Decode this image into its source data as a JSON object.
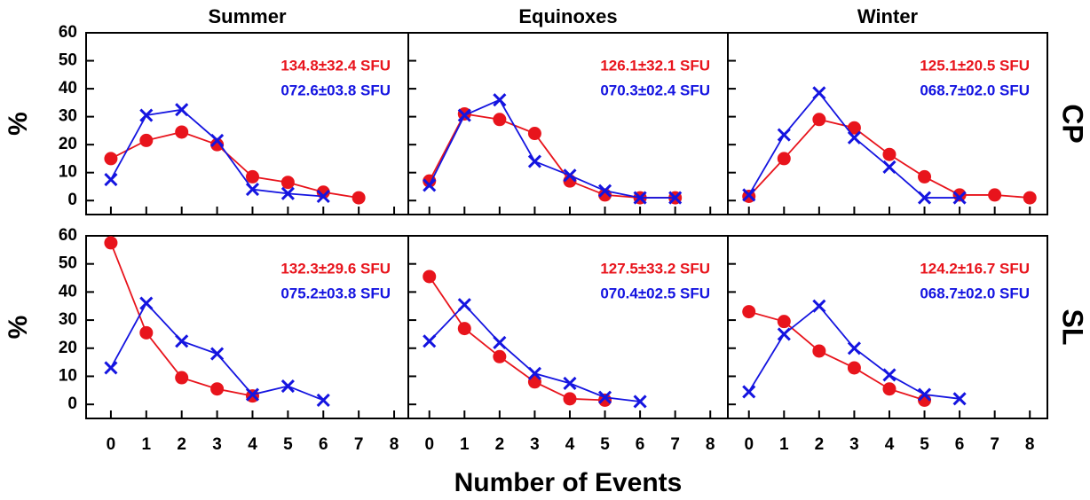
{
  "xlabel": "Number of Events",
  "chart_data": [
    {
      "type": "line",
      "title": "Summer",
      "ylabel": "%",
      "x": [
        0,
        1,
        2,
        3,
        4,
        5,
        6,
        7,
        8
      ],
      "xlim": [
        -0.7,
        8.4
      ],
      "ylim": [
        -5,
        60
      ],
      "xticks": [
        0,
        1,
        2,
        3,
        4,
        5,
        6,
        7,
        8
      ],
      "yticks": [
        0,
        10,
        20,
        30,
        40,
        50,
        60
      ],
      "xtick_labels": false,
      "ytick_labels": true,
      "series": [
        {
          "name": "134.8±32.4 SFU",
          "color": "#e8141c",
          "marker": "circle",
          "values": [
            15,
            21.5,
            24.5,
            20,
            8.5,
            6.5,
            3,
            1,
            null
          ]
        },
        {
          "name": "072.6±03.8 SFU",
          "color": "#1414e0",
          "marker": "x",
          "values": [
            7.5,
            30.5,
            32.5,
            21.5,
            4,
            2.5,
            1.5,
            null,
            null
          ]
        }
      ]
    },
    {
      "type": "line",
      "title": "Equinoxes",
      "x": [
        0,
        1,
        2,
        3,
        4,
        5,
        6,
        7,
        8
      ],
      "xlim": [
        -0.6,
        8.5
      ],
      "ylim": [
        -5,
        60
      ],
      "xticks": [
        0,
        1,
        2,
        3,
        4,
        5,
        6,
        7,
        8
      ],
      "yticks": [
        0,
        10,
        20,
        30,
        40,
        50,
        60
      ],
      "xtick_labels": false,
      "ytick_labels": false,
      "series": [
        {
          "name": "126.1±32.1 SFU",
          "color": "#e8141c",
          "marker": "circle",
          "values": [
            7,
            31,
            29,
            24,
            7,
            2,
            1,
            1,
            null
          ]
        },
        {
          "name": "070.3±02.4 SFU",
          "color": "#1414e0",
          "marker": "x",
          "values": [
            5.5,
            30.5,
            36,
            14,
            9,
            3.5,
            1,
            1,
            null
          ]
        }
      ]
    },
    {
      "type": "line",
      "title": "Winter",
      "row_label": "CP",
      "x": [
        0,
        1,
        2,
        3,
        4,
        5,
        6,
        7,
        8
      ],
      "xlim": [
        -0.6,
        8.5
      ],
      "ylim": [
        -5,
        60
      ],
      "xticks": [
        0,
        1,
        2,
        3,
        4,
        5,
        6,
        7,
        8
      ],
      "yticks": [
        0,
        10,
        20,
        30,
        40,
        50,
        60
      ],
      "xtick_labels": false,
      "ytick_labels": false,
      "series": [
        {
          "name": "125.1±20.5 SFU",
          "color": "#e8141c",
          "marker": "circle",
          "values": [
            1.5,
            15,
            29,
            26,
            16.5,
            8.5,
            2,
            2,
            1
          ]
        },
        {
          "name": "068.7±02.0 SFU",
          "color": "#1414e0",
          "marker": "x",
          "values": [
            2,
            23.5,
            38.5,
            22.5,
            12,
            1,
            1,
            null,
            null
          ]
        }
      ]
    },
    {
      "type": "line",
      "ylabel": "%",
      "x": [
        0,
        1,
        2,
        3,
        4,
        5,
        6,
        7,
        8
      ],
      "xlim": [
        -0.7,
        8.4
      ],
      "ylim": [
        -5,
        60
      ],
      "xticks": [
        0,
        1,
        2,
        3,
        4,
        5,
        6,
        7,
        8
      ],
      "yticks": [
        0,
        10,
        20,
        30,
        40,
        50,
        60
      ],
      "xtick_labels": true,
      "ytick_labels": true,
      "series": [
        {
          "name": "132.3±29.6 SFU",
          "color": "#e8141c",
          "marker": "circle",
          "values": [
            57.5,
            25.5,
            9.5,
            5.5,
            3,
            null,
            null,
            null,
            null
          ]
        },
        {
          "name": "075.2±03.8 SFU",
          "color": "#1414e0",
          "marker": "x",
          "values": [
            13,
            36,
            22.5,
            18,
            3.5,
            6.5,
            1.5,
            null,
            null
          ]
        }
      ]
    },
    {
      "type": "line",
      "x": [
        0,
        1,
        2,
        3,
        4,
        5,
        6,
        7,
        8
      ],
      "xlim": [
        -0.6,
        8.5
      ],
      "ylim": [
        -5,
        60
      ],
      "xticks": [
        0,
        1,
        2,
        3,
        4,
        5,
        6,
        7,
        8
      ],
      "yticks": [
        0,
        10,
        20,
        30,
        40,
        50,
        60
      ],
      "xtick_labels": true,
      "ytick_labels": false,
      "series": [
        {
          "name": "127.5±33.2 SFU",
          "color": "#e8141c",
          "marker": "circle",
          "values": [
            45.5,
            27,
            17,
            8,
            2,
            1.5,
            null,
            null,
            null
          ]
        },
        {
          "name": "070.4±02.5 SFU",
          "color": "#1414e0",
          "marker": "x",
          "values": [
            22.5,
            35.5,
            22,
            11,
            7.5,
            2.5,
            1,
            null,
            null
          ]
        }
      ]
    },
    {
      "type": "line",
      "row_label": "SL",
      "x": [
        0,
        1,
        2,
        3,
        4,
        5,
        6,
        7,
        8
      ],
      "xlim": [
        -0.6,
        8.5
      ],
      "ylim": [
        -5,
        60
      ],
      "xticks": [
        0,
        1,
        2,
        3,
        4,
        5,
        6,
        7,
        8
      ],
      "yticks": [
        0,
        10,
        20,
        30,
        40,
        50,
        60
      ],
      "xtick_labels": true,
      "ytick_labels": false,
      "series": [
        {
          "name": "124.2±16.7 SFU",
          "color": "#e8141c",
          "marker": "circle",
          "values": [
            33,
            29.5,
            19,
            13,
            5.5,
            1.5,
            null,
            null,
            null
          ]
        },
        {
          "name": "068.7±02.0 SFU",
          "color": "#1414e0",
          "marker": "x",
          "values": [
            4.5,
            25,
            35,
            20,
            10.5,
            3.5,
            2,
            null,
            null
          ]
        }
      ]
    }
  ]
}
